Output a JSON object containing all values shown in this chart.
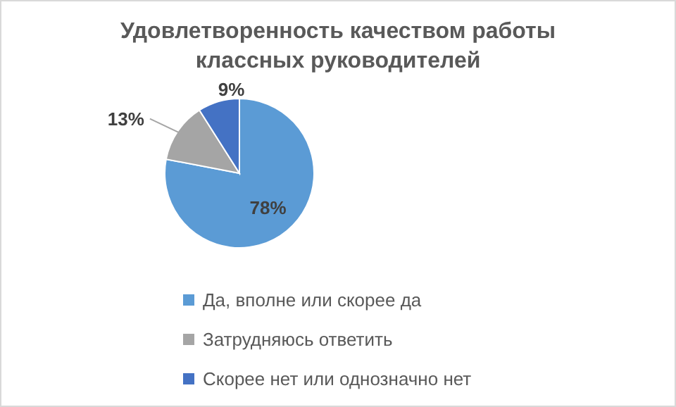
{
  "chart_data": {
    "type": "pie",
    "title": "Удовлетворенность качеством работы классных руководителей",
    "categories": [
      "Да, вполне или скорее да",
      "Затрудняюсь ответить",
      "Скорее нет или однозначно нет"
    ],
    "values": [
      78,
      13,
      9
    ],
    "value_labels": [
      "78%",
      "13%",
      "9%"
    ],
    "colors": [
      "#5b9bd5",
      "#a5a5a5",
      "#4472c4"
    ],
    "legend": "bottom"
  }
}
